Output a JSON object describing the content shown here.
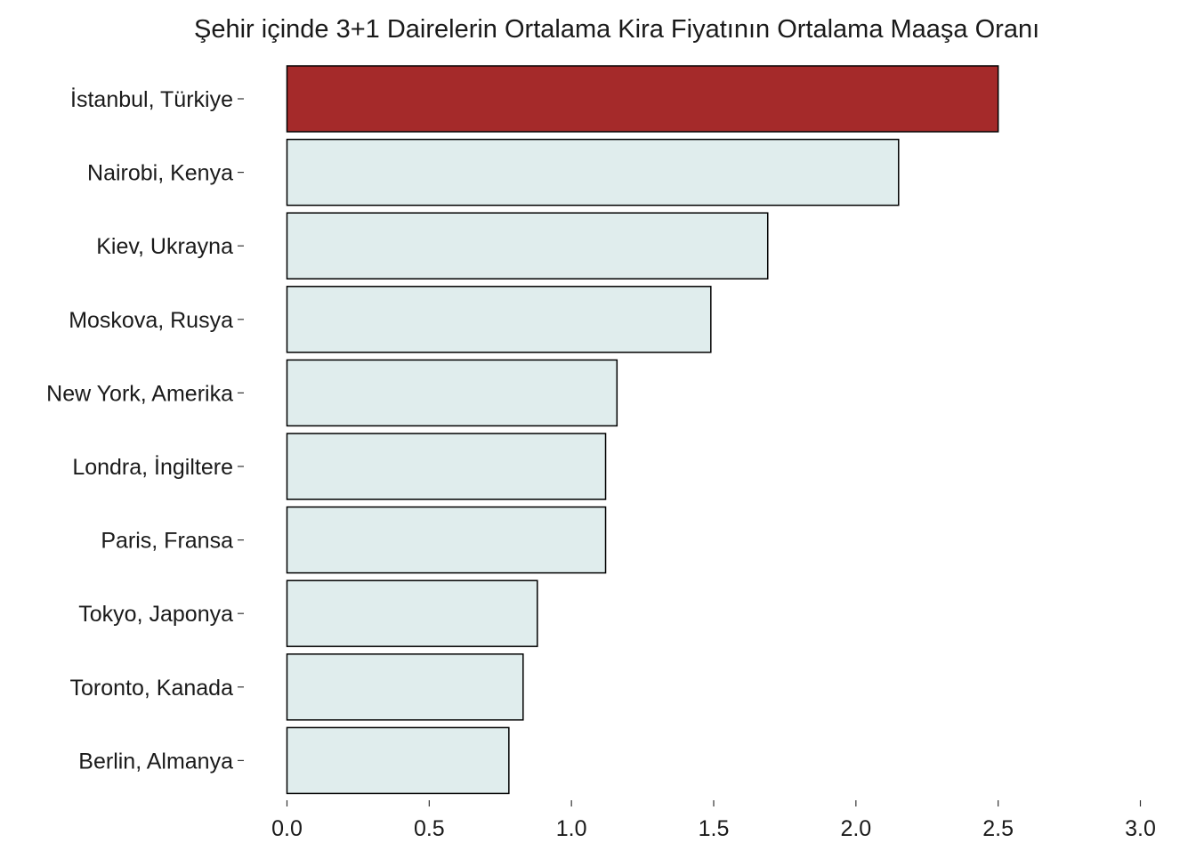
{
  "chart_data": {
    "type": "bar",
    "orientation": "horizontal",
    "title": "Şehir içinde 3+1 Dairelerin Ortalama Kira Fiyatının Ortalama Maaşa Oranı",
    "xlabel": "",
    "ylabel": "",
    "categories": [
      "İstanbul, Türkiye",
      "Nairobi, Kenya",
      "Kiev, Ukrayna",
      "Moskova, Rusya",
      "New York, Amerika",
      "Londra, İngiltere",
      "Paris, Fransa",
      "Tokyo, Japonya",
      "Toronto, Kanada",
      "Berlin, Almanya"
    ],
    "values": [
      2.5,
      2.15,
      1.69,
      1.49,
      1.16,
      1.12,
      1.12,
      0.88,
      0.83,
      0.78
    ],
    "xlim": [
      0,
      3.0
    ],
    "xticks": [
      "0.0",
      "0.5",
      "1.0",
      "1.5",
      "2.0",
      "2.5",
      "3.0"
    ],
    "grid": false,
    "legend": "none",
    "colors": {
      "highlight": "#a52a2a",
      "default": "#e0eded",
      "outline": "#000000"
    },
    "highlight_category": "İstanbul, Türkiye"
  }
}
